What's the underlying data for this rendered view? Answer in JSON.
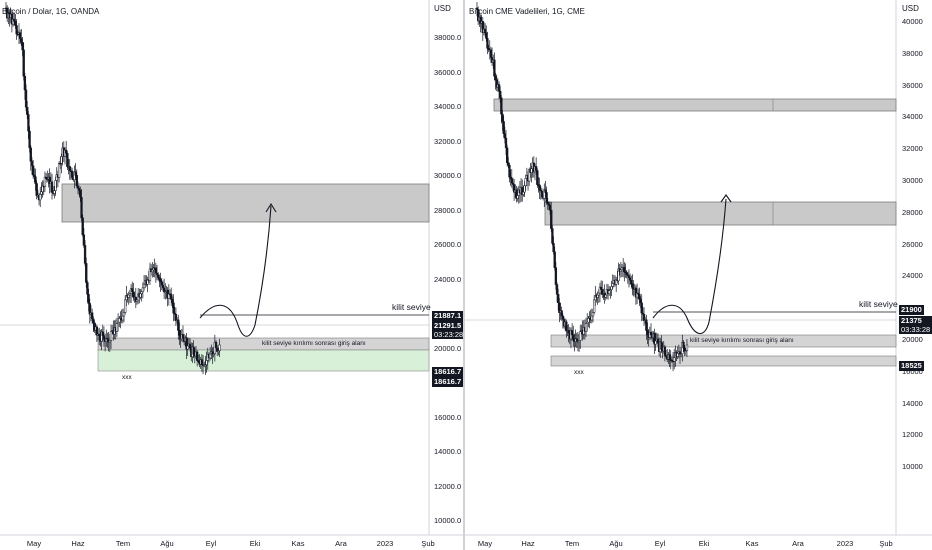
{
  "left_chart": {
    "title": "Bitcoin / Dolar, 1G, OANDA",
    "currency": "USD",
    "y_ticks": [
      "38000.0",
      "36000.0",
      "34000.0",
      "32000.0",
      "30000.0",
      "28000.0",
      "26000.0",
      "24000.0",
      "22000.0",
      "20000.0",
      "16000.0",
      "14000.0",
      "12000.0",
      "10000.0"
    ],
    "x_ticks": [
      "May",
      "Haz",
      "Tem",
      "Ağu",
      "Eyl",
      "Eki",
      "Kas",
      "Ara",
      "2023",
      "Şub"
    ],
    "price_tags": {
      "key_level": "21887.1",
      "last_price": "21291.5",
      "countdown": "03:23:28",
      "low_1": "18616.7",
      "low_2": "18616.7"
    },
    "key_level_label": "kilit seviye",
    "zone_label": "kilit seviye kırılımı sonrası giriş alanı",
    "low_marker": "xxx"
  },
  "right_chart": {
    "title": "Bitcoin CME Vadelileri, 1G, CME",
    "currency": "USD",
    "y_ticks": [
      "40000",
      "38000",
      "36000",
      "34000",
      "32000",
      "30000",
      "28000",
      "26000",
      "24000",
      "20000",
      "16000",
      "14000",
      "12000",
      "10000"
    ],
    "x_ticks": [
      "May",
      "Haz",
      "Tem",
      "Ağu",
      "Eyl",
      "Eki",
      "Kas",
      "Ara",
      "2023",
      "Şub"
    ],
    "price_tags": {
      "key_level": "21900",
      "last_price": "21375",
      "countdown": "03:33:28",
      "low": "18525"
    },
    "key_level_label": "kilit seviye",
    "zone_label": "kilit seviye kırılımı sonrası giriş alanı",
    "low_marker": "xxx"
  }
}
